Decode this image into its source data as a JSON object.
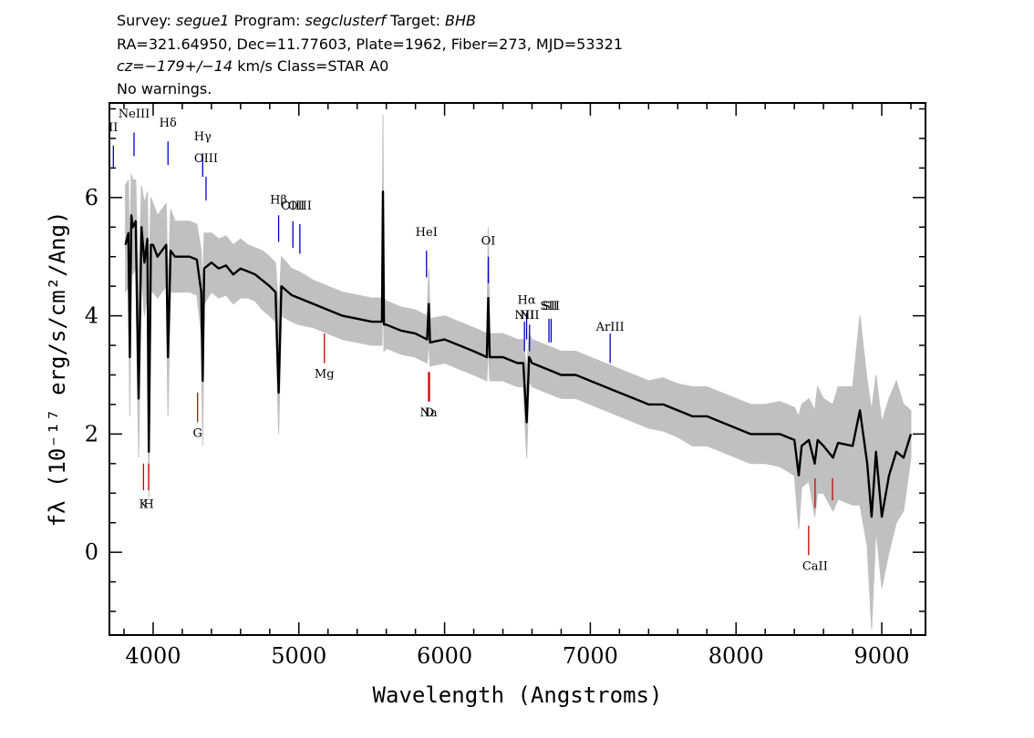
{
  "header": {
    "line1": {
      "survey_label": "Survey:",
      "survey": "segue1",
      "program_label": "Program:",
      "program": "segclusterf",
      "target_label": "Target:",
      "target": "BHB"
    },
    "line2": "RA=321.64950, Dec=11.77603, Plate=1962, Fiber=273, MJD=53321",
    "line3": {
      "cz": "cz=−179+/−14",
      "rest": " km/s Class=STAR A0"
    },
    "line4": "No warnings."
  },
  "chart_data": {
    "type": "line",
    "title": "",
    "xlabel": "Wavelength (Angstroms)",
    "ylabel": "fλ (10⁻¹⁷ erg/s/cm²/Ang)",
    "xlim": [
      3700,
      9300
    ],
    "ylim": [
      -1.4,
      7.6
    ],
    "x_ticks": [
      4000,
      5000,
      6000,
      7000,
      8000,
      9000
    ],
    "x_tick_labels": [
      "4000",
      "5000",
      "6000",
      "7000",
      "8000",
      "9000"
    ],
    "y_ticks": [
      0,
      2,
      4,
      6
    ],
    "y_tick_labels": [
      "0",
      "2",
      "4",
      "6"
    ],
    "grid": false,
    "series": [
      {
        "role": "spectrum",
        "color": "#000000",
        "x": [
          3810,
          3830,
          3840,
          3850,
          3860,
          3880,
          3900,
          3920,
          3940,
          3960,
          3970,
          3985,
          4000,
          4030,
          4060,
          4090,
          4102,
          4120,
          4150,
          4200,
          4250,
          4300,
          4330,
          4340,
          4350,
          4400,
          4450,
          4500,
          4550,
          4600,
          4650,
          4700,
          4750,
          4800,
          4840,
          4861,
          4880,
          4950,
          5000,
          5100,
          5200,
          5300,
          5400,
          5500,
          5570,
          5577,
          5584,
          5600,
          5700,
          5800,
          5880,
          5892,
          5900,
          6000,
          6100,
          6200,
          6290,
          6300,
          6310,
          6400,
          6500,
          6540,
          6563,
          6580,
          6600,
          6700,
          6800,
          6900,
          7000,
          7100,
          7200,
          7300,
          7400,
          7500,
          7600,
          7700,
          7800,
          7900,
          8000,
          8100,
          8200,
          8300,
          8400,
          8430,
          8450,
          8500,
          8540,
          8560,
          8600,
          8665,
          8700,
          8800,
          8850,
          8900,
          8930,
          8960,
          9000,
          9050,
          9100,
          9150,
          9200
        ],
        "y": [
          5.2,
          5.4,
          3.3,
          5.7,
          5.5,
          5.6,
          2.6,
          5.5,
          4.9,
          5.3,
          1.7,
          5.2,
          5.2,
          5.0,
          5.1,
          5.2,
          3.3,
          5.1,
          5.0,
          5.0,
          5.0,
          4.95,
          4.4,
          2.9,
          4.8,
          4.9,
          4.8,
          4.85,
          4.7,
          4.8,
          4.75,
          4.7,
          4.6,
          4.5,
          4.4,
          2.7,
          4.5,
          4.35,
          4.3,
          4.2,
          4.1,
          4.0,
          3.95,
          3.9,
          3.9,
          6.1,
          3.85,
          3.85,
          3.75,
          3.7,
          3.6,
          4.2,
          3.55,
          3.6,
          3.5,
          3.4,
          3.3,
          4.3,
          3.3,
          3.3,
          3.2,
          3.2,
          2.2,
          3.3,
          3.2,
          3.1,
          3.0,
          3.0,
          2.9,
          2.8,
          2.7,
          2.6,
          2.5,
          2.5,
          2.4,
          2.3,
          2.3,
          2.2,
          2.1,
          2.0,
          2.0,
          2.0,
          1.9,
          1.3,
          1.8,
          1.9,
          1.5,
          1.9,
          1.8,
          1.6,
          1.85,
          1.8,
          2.4,
          1.5,
          0.6,
          1.7,
          0.6,
          1.3,
          1.7,
          1.6,
          2.0
        ]
      },
      {
        "role": "noise-envelope",
        "color": "#c0c0c0",
        "upper": [
          6.2,
          6.3,
          5.0,
          6.4,
          6.3,
          6.3,
          4.5,
          6.2,
          5.9,
          6.1,
          4.6,
          6.0,
          5.9,
          5.7,
          5.8,
          5.9,
          4.5,
          5.8,
          5.6,
          5.6,
          5.6,
          5.55,
          5.1,
          4.4,
          5.4,
          5.4,
          5.3,
          5.35,
          5.2,
          5.3,
          5.2,
          5.15,
          5.1,
          5.0,
          4.9,
          4.1,
          5.0,
          4.8,
          4.75,
          4.6,
          4.5,
          4.4,
          4.35,
          4.3,
          4.3,
          7.4,
          4.3,
          4.25,
          4.15,
          4.1,
          4.0,
          4.8,
          3.95,
          4.0,
          3.9,
          3.8,
          3.7,
          5.5,
          3.7,
          3.7,
          3.6,
          3.6,
          3.1,
          3.7,
          3.6,
          3.5,
          3.4,
          3.4,
          3.3,
          3.2,
          3.1,
          3.0,
          2.9,
          2.95,
          2.85,
          2.8,
          2.8,
          2.7,
          2.6,
          2.5,
          2.5,
          2.55,
          2.45,
          2.3,
          2.5,
          2.6,
          2.4,
          2.8,
          2.6,
          2.5,
          2.8,
          2.8,
          4.0,
          2.9,
          2.4,
          3.0,
          2.2,
          2.6,
          2.9,
          2.5,
          2.4
        ],
        "lower": [
          4.4,
          4.5,
          2.3,
          4.9,
          4.7,
          4.8,
          1.6,
          4.7,
          4.0,
          4.4,
          0.9,
          4.4,
          4.4,
          4.3,
          4.4,
          4.5,
          2.3,
          4.4,
          4.4,
          4.4,
          4.4,
          4.35,
          3.7,
          1.8,
          4.2,
          4.4,
          4.3,
          4.35,
          4.2,
          4.3,
          4.3,
          4.25,
          4.1,
          4.0,
          3.9,
          2.0,
          4.0,
          3.9,
          3.85,
          3.8,
          3.7,
          3.6,
          3.55,
          3.5,
          3.5,
          5.0,
          3.4,
          3.45,
          3.35,
          3.3,
          3.2,
          3.6,
          3.15,
          3.2,
          3.1,
          3.0,
          2.9,
          3.5,
          2.9,
          2.9,
          2.8,
          2.8,
          1.6,
          2.9,
          2.8,
          2.7,
          2.6,
          2.6,
          2.5,
          2.4,
          2.3,
          2.2,
          2.1,
          2.05,
          1.95,
          1.8,
          1.8,
          1.7,
          1.6,
          1.5,
          1.5,
          1.45,
          1.3,
          0.4,
          1.1,
          1.2,
          0.6,
          1.0,
          1.0,
          0.7,
          0.9,
          0.8,
          0.8,
          0.1,
          -1.3,
          0.4,
          -0.6,
          0.0,
          0.5,
          0.7,
          1.6
        ]
      }
    ],
    "emission_lines": [
      {
        "label": "II",
        "x": 3727,
        "y_top": 6.88,
        "y_bottom": 6.5,
        "label_y": 7.12,
        "color": "#0000cc"
      },
      {
        "label": "NeIII",
        "x": 3869,
        "y_top": 7.1,
        "y_bottom": 6.7,
        "label_y": 7.35,
        "color": "#0000cc"
      },
      {
        "label": "Hδ",
        "x": 4102,
        "y_top": 6.95,
        "y_bottom": 6.55,
        "label_y": 7.2,
        "color": "#0000cc"
      },
      {
        "label": "Hγ",
        "x": 4340,
        "y_top": 6.75,
        "y_bottom": 6.35,
        "label_y": 6.97,
        "color": "#0000cc"
      },
      {
        "label": "OIII",
        "x": 4363,
        "y_top": 6.35,
        "y_bottom": 5.95,
        "label_y": 6.6,
        "color": "#0000cc"
      },
      {
        "label": "Hβ",
        "x": 4861,
        "y_top": 5.7,
        "y_bottom": 5.25,
        "label_y": 5.9,
        "color": "#0000cc"
      },
      {
        "label": "OIII",
        "x": 4959,
        "y_top": 5.6,
        "y_bottom": 5.15,
        "label_y": 5.8,
        "color": "#0000cc"
      },
      {
        "label": "OIII",
        "x": 5007,
        "y_top": 5.55,
        "y_bottom": 5.05,
        "label_y": 5.8,
        "color": "#0000cc"
      },
      {
        "label": "HeI",
        "x": 5876,
        "y_top": 5.1,
        "y_bottom": 4.65,
        "label_y": 5.35,
        "color": "#0000cc"
      },
      {
        "label": "OI",
        "x": 6300,
        "y_top": 5.0,
        "y_bottom": 4.55,
        "label_y": 5.2,
        "color": "#0000cc"
      },
      {
        "label": "NII",
        "x": 6548,
        "y_top": 3.9,
        "y_bottom": 3.4,
        "label_y": 3.95,
        "color": "#0000cc"
      },
      {
        "label": "Hα",
        "x": 6563,
        "y_top": 4.05,
        "y_bottom": 3.6,
        "label_y": 4.2,
        "color": "#0000cc"
      },
      {
        "label": "NII",
        "x": 6583,
        "y_top": 3.85,
        "y_bottom": 3.4,
        "label_y": 3.95,
        "color": "#0000cc"
      },
      {
        "label": "SII",
        "x": 6716,
        "y_top": 3.95,
        "y_bottom": 3.55,
        "label_y": 4.1,
        "color": "#0000cc"
      },
      {
        "label": "SII",
        "x": 6731,
        "y_top": 3.95,
        "y_bottom": 3.55,
        "label_y": 4.1,
        "color": "#0000cc"
      },
      {
        "label": "ArIII",
        "x": 7136,
        "y_top": 3.7,
        "y_bottom": 3.2,
        "label_y": 3.75,
        "color": "#0000cc"
      }
    ],
    "absorption_lines": [
      {
        "label": "K",
        "x": 3934,
        "y_top": 1.5,
        "y_bottom": 1.05,
        "label_y": 0.75,
        "color": "#cc0000"
      },
      {
        "label": "H",
        "x": 3969,
        "y_top": 1.5,
        "y_bottom": 1.05,
        "label_y": 0.75,
        "color": "#cc0000"
      },
      {
        "label": "G",
        "x": 4305,
        "y_top": 2.7,
        "y_bottom": 2.2,
        "label_y": 1.95,
        "color": "#cc0000"
      },
      {
        "label": "Mg",
        "x": 5175,
        "y_top": 3.7,
        "y_bottom": 3.2,
        "label_y": 2.95,
        "color": "#cc0000"
      },
      {
        "label": "Na",
        "x": 5890,
        "y_top": 3.05,
        "y_bottom": 2.55,
        "label_y": 2.3,
        "color": "#cc0000"
      },
      {
        "label": "D",
        "x": 5896,
        "y_top": 3.05,
        "y_bottom": 2.55,
        "label_y": 2.3,
        "color": "#cc0000"
      },
      {
        "label": "",
        "x": 8498,
        "y_top": 0.45,
        "y_bottom": -0.05,
        "label_y": -0.3,
        "color": "#cc0000"
      },
      {
        "label": "CaII",
        "x": 8542,
        "y_top": 1.25,
        "y_bottom": 0.75,
        "label_y": -0.3,
        "color": "#cc0000"
      },
      {
        "label": "",
        "x": 8662,
        "y_top": 1.25,
        "y_bottom": 0.88,
        "label_y": -0.3,
        "color": "#cc0000"
      }
    ]
  }
}
